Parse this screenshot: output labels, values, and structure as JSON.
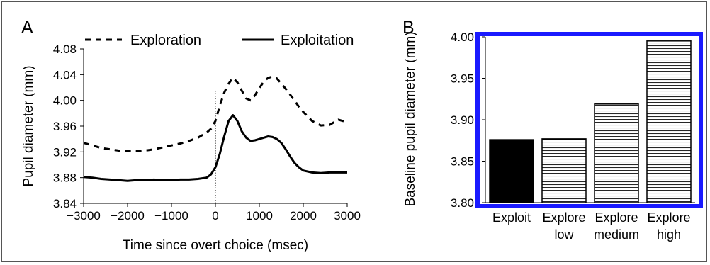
{
  "chart_data": [
    {
      "panel_label": "A",
      "type": "line",
      "xlabel": "Time since overt choice (msec)",
      "ylabel": "Pupil diameter (mm)",
      "xlim": [
        -3000,
        3000
      ],
      "ylim": [
        3.84,
        4.08
      ],
      "xticks": [
        -3000,
        -2000,
        -1000,
        0,
        1000,
        2000,
        3000
      ],
      "xtick_labels": [
        "−3000",
        "−2000",
        "−1000",
        "0",
        "1000",
        "2000",
        "3000"
      ],
      "yticks": [
        3.84,
        3.88,
        3.92,
        3.96,
        4.0,
        4.04,
        4.08
      ],
      "ytick_labels": [
        "3.84",
        "3.88",
        "3.92",
        "3.96",
        "4.00",
        "4.04",
        "4.08"
      ],
      "reference_line_x": 0,
      "legend_position": "top",
      "series": [
        {
          "name": "Exploration",
          "style": "dashed",
          "x": [
            -3000,
            -2800,
            -2600,
            -2400,
            -2200,
            -2000,
            -1800,
            -1600,
            -1400,
            -1200,
            -1000,
            -800,
            -600,
            -400,
            -200,
            -100,
            0,
            100,
            200,
            300,
            400,
            500,
            600,
            700,
            800,
            900,
            1000,
            1100,
            1200,
            1300,
            1400,
            1500,
            1600,
            1700,
            1800,
            1900,
            2000,
            2200,
            2400,
            2600,
            2800,
            3000
          ],
          "values": [
            3.934,
            3.93,
            3.926,
            3.924,
            3.922,
            3.921,
            3.921,
            3.922,
            3.924,
            3.927,
            3.93,
            3.933,
            3.937,
            3.942,
            3.95,
            3.956,
            3.968,
            3.992,
            4.012,
            4.026,
            4.035,
            4.028,
            4.015,
            4.003,
            4.0,
            4.008,
            4.019,
            4.029,
            4.035,
            4.037,
            4.034,
            4.026,
            4.018,
            4.009,
            4.0,
            3.99,
            3.982,
            3.968,
            3.961,
            3.962,
            3.97,
            3.966
          ]
        },
        {
          "name": "Exploitation",
          "style": "solid",
          "x": [
            -3000,
            -2800,
            -2600,
            -2400,
            -2200,
            -2000,
            -1800,
            -1600,
            -1400,
            -1200,
            -1000,
            -800,
            -600,
            -400,
            -200,
            -100,
            0,
            100,
            200,
            300,
            400,
            500,
            600,
            700,
            800,
            900,
            1000,
            1100,
            1200,
            1300,
            1400,
            1500,
            1600,
            1700,
            1800,
            1900,
            2000,
            2200,
            2400,
            2600,
            2800,
            3000
          ],
          "values": [
            3.881,
            3.88,
            3.878,
            3.877,
            3.876,
            3.875,
            3.876,
            3.876,
            3.877,
            3.876,
            3.876,
            3.877,
            3.877,
            3.878,
            3.88,
            3.885,
            3.896,
            3.917,
            3.944,
            3.968,
            3.977,
            3.968,
            3.952,
            3.942,
            3.937,
            3.938,
            3.94,
            3.942,
            3.944,
            3.943,
            3.94,
            3.934,
            3.924,
            3.913,
            3.903,
            3.896,
            3.891,
            3.888,
            3.887,
            3.888,
            3.888,
            3.888
          ]
        }
      ]
    },
    {
      "panel_label": "B",
      "type": "bar",
      "ylabel": "Baseline pupil diameter (mm)",
      "ylim": [
        3.8,
        4.0
      ],
      "yticks": [
        3.8,
        3.85,
        3.9,
        3.95,
        4.0
      ],
      "ytick_labels": [
        "3.80",
        "3.85",
        "3.90",
        "3.95",
        "4.00"
      ],
      "categories": [
        "Exploit",
        "Explore low",
        "Explore medium",
        "Explore high"
      ],
      "category_lines": [
        [
          "Exploit"
        ],
        [
          "Explore",
          "low"
        ],
        [
          "Explore",
          "medium"
        ],
        [
          "Explore",
          "high"
        ]
      ],
      "values": [
        3.876,
        3.877,
        3.919,
        3.995
      ],
      "bar_fills": [
        "solid",
        "hatched",
        "hatched",
        "hatched"
      ],
      "highlight_border_color": "#1a1aff"
    }
  ]
}
